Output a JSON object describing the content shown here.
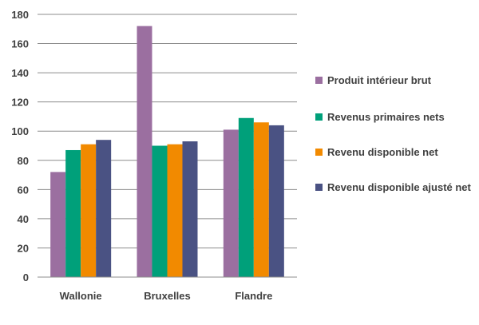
{
  "chart_data": {
    "type": "bar",
    "categories": [
      "Wallonie",
      "Bruxelles",
      "Flandre"
    ],
    "ylim": [
      0,
      180
    ],
    "yticks": [
      0,
      20,
      40,
      60,
      80,
      100,
      120,
      140,
      160,
      180
    ],
    "grid": true,
    "legend_position": "right",
    "series": [
      {
        "name": "Produit intérieur brut",
        "color": "#9B6FA0",
        "values": [
          72,
          172,
          101
        ]
      },
      {
        "name": "Revenus primaires nets",
        "color": "#00A07A",
        "values": [
          87,
          90,
          109
        ]
      },
      {
        "name": "Revenu disponible net",
        "color": "#F28A00",
        "values": [
          91,
          91,
          106
        ]
      },
      {
        "name": "Revenu disponible ajusté net",
        "color": "#4A5283",
        "values": [
          94,
          93,
          104
        ]
      }
    ]
  }
}
